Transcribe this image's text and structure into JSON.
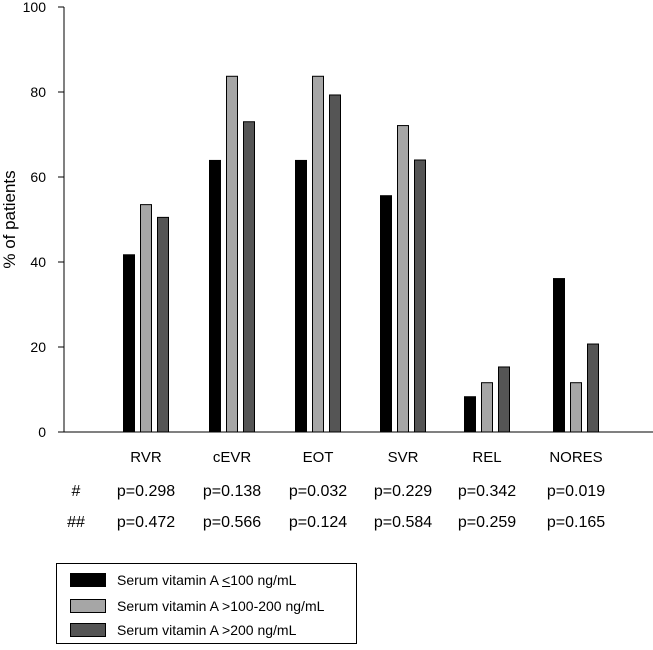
{
  "chart_data": {
    "type": "bar",
    "title": "",
    "xlabel": "",
    "ylabel": "% of patients",
    "ylim": [
      0,
      100
    ],
    "yticks": [
      0,
      20,
      40,
      60,
      80,
      100
    ],
    "grid": false,
    "legend_position": "bottom-left",
    "categories": [
      "RVR",
      "cEVR",
      "EOT",
      "SVR",
      "REL",
      "NORES"
    ],
    "series": [
      {
        "name": "Serum vitamin A ≤100 ng/mL",
        "color": "#000000",
        "values": [
          41.7,
          63.9,
          63.9,
          55.6,
          8.3,
          36.1
        ]
      },
      {
        "name": "Serum vitamin A >100-200 ng/mL",
        "color": "#a6a6a6",
        "values": [
          53.5,
          83.7,
          83.7,
          72.1,
          11.6,
          11.6
        ]
      },
      {
        "name": "Serum vitamin A >200 ng/mL",
        "color": "#555555",
        "values": [
          50.5,
          73.0,
          79.3,
          64.0,
          15.3,
          20.7
        ]
      }
    ],
    "p_value_rows": [
      {
        "marker": "#",
        "values": [
          "p=0.298",
          "p=0.138",
          "p=0.032",
          "p=0.229",
          "p=0.342",
          "p=0.019"
        ]
      },
      {
        "marker": "##",
        "values": [
          "p=0.472",
          "p=0.566",
          "p=0.124",
          "p=0.584",
          "p=0.259",
          "p=0.165"
        ]
      }
    ]
  },
  "legend": {
    "items": [
      {
        "prefix": "Serum vitamin A ",
        "underlined": "<",
        "suffix": "100 ng/mL",
        "color": "#000000"
      },
      {
        "prefix": "Serum vitamin A >100-200 ng/mL",
        "underlined": "",
        "suffix": "",
        "color": "#a6a6a6"
      },
      {
        "prefix": "Serum vitamin A >200 ng/mL",
        "underlined": "",
        "suffix": "",
        "color": "#555555"
      }
    ]
  }
}
